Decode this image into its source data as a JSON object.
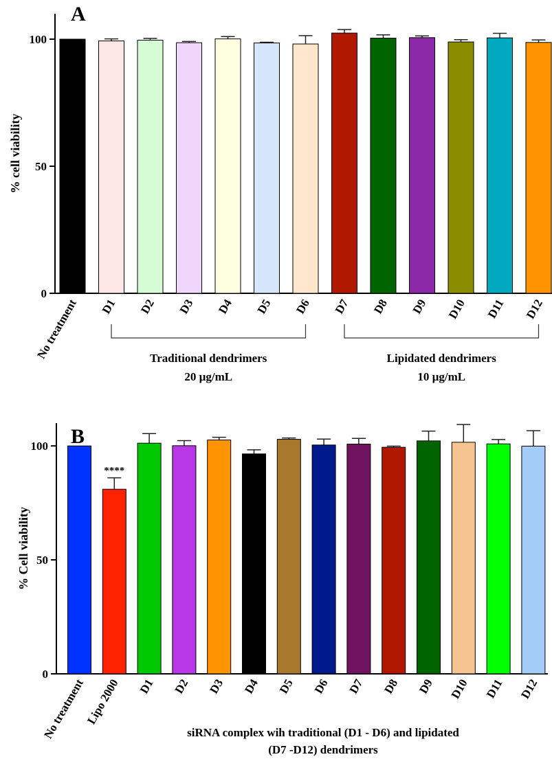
{
  "chart_data": [
    {
      "type": "bar",
      "panel_label": "A",
      "ylabel": "% cell viability",
      "ylim": [
        0,
        110
      ],
      "yticks": [
        0,
        50,
        100
      ],
      "grid": false,
      "categories": [
        "No treatment",
        "D1",
        "D2",
        "D3",
        "D4",
        "D5",
        "D6",
        "D7",
        "D8",
        "D9",
        "D10",
        "D11",
        "D12"
      ],
      "values": [
        100,
        99.3,
        99.6,
        98.6,
        100.1,
        98.5,
        98.1,
        102.4,
        100.4,
        100.6,
        98.9,
        100.5,
        98.7
      ],
      "errors": [
        0,
        0.8,
        0.7,
        0.5,
        0.9,
        0.3,
        3.3,
        1.4,
        1.3,
        0.7,
        0.9,
        1.8,
        1.0
      ],
      "colors": [
        "#000000",
        "#FDE6E6",
        "#D6FCD6",
        "#F0D6FA",
        "#FEFEE0",
        "#D6E6FA",
        "#FDE6CC",
        "#B01800",
        "#006400",
        "#8A28A8",
        "#8C8C00",
        "#00A8C0",
        "#FF9400"
      ],
      "groups": [
        {
          "label_line1": "Traditional dendrimers",
          "label_line2": "20 µg/mL",
          "start": 1,
          "end": 6
        },
        {
          "label_line1": "Lipidated dendrimers",
          "label_line2": "10 µg/mL",
          "start": 7,
          "end": 12
        }
      ]
    },
    {
      "type": "bar",
      "panel_label": "B",
      "ylabel": "% Cell viability",
      "ylim": [
        0,
        110
      ],
      "yticks": [
        0,
        50,
        100
      ],
      "grid": false,
      "categories": [
        "No treatment",
        "Lipo 2000",
        "D1",
        "D2",
        "D3",
        "D4",
        "D5",
        "D6",
        "D7",
        "D8",
        "D9",
        "D10",
        "D11",
        "D12"
      ],
      "values": [
        100,
        81,
        101.2,
        100.1,
        102.6,
        96.5,
        102.9,
        100.4,
        100.8,
        99.4,
        102.2,
        101.6,
        100.9,
        99.9
      ],
      "errors": [
        0,
        5,
        4.2,
        2.2,
        1.2,
        1.8,
        0.6,
        2.6,
        2.5,
        0.5,
        4.3,
        7.8,
        1.9,
        6.8
      ],
      "colors": [
        "#0033FF",
        "#FF2200",
        "#00C800",
        "#B838E8",
        "#FF9400",
        "#000000",
        "#A8782C",
        "#001A8C",
        "#701460",
        "#B01800",
        "#006400",
        "#F6C490",
        "#00FF00",
        "#A4CCF8"
      ],
      "annotations": [
        {
          "index": 1,
          "text": "****"
        }
      ],
      "caption_line1": "siRNA  complex wih traditional (D1 - D6) and lipidated",
      "caption_line2": "(D7 -D12) dendrimers"
    }
  ]
}
